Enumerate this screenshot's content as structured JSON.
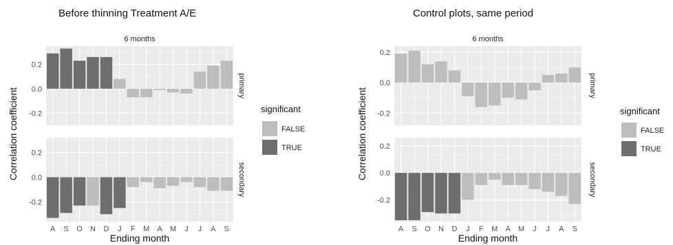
{
  "chart_data": [
    {
      "type": "bar",
      "title": "Before thinning Treatment A/E",
      "facet_label": "6 months",
      "xlabel": "Ending month",
      "ylabel": "Correlation coefficient",
      "categories": [
        "A",
        "S",
        "O",
        "N",
        "D",
        "J",
        "F",
        "M",
        "A",
        "M",
        "J",
        "J",
        "A",
        "S"
      ],
      "panels": [
        {
          "name": "primary",
          "values": [
            0.29,
            0.33,
            0.23,
            0.26,
            0.26,
            0.08,
            -0.07,
            -0.07,
            -0.01,
            -0.03,
            -0.04,
            0.14,
            0.19,
            0.23
          ],
          "significant": [
            true,
            true,
            true,
            true,
            true,
            false,
            false,
            false,
            false,
            false,
            false,
            false,
            false,
            false
          ],
          "ylim": [
            -0.3,
            0.35
          ],
          "yticks": [
            -0.2,
            0.0,
            0.2
          ],
          "ytick_labels": [
            "-0.2",
            "0.0",
            "0.2"
          ]
        },
        {
          "name": "secondary",
          "values": [
            -0.33,
            -0.29,
            -0.23,
            -0.23,
            -0.3,
            -0.25,
            -0.08,
            -0.04,
            -0.09,
            -0.07,
            -0.04,
            -0.08,
            -0.11,
            -0.11
          ],
          "significant": [
            true,
            true,
            true,
            false,
            true,
            true,
            false,
            false,
            false,
            false,
            false,
            false,
            false,
            false
          ],
          "ylim": [
            -0.36,
            0.32
          ],
          "yticks": [
            -0.2,
            0.0,
            0.2
          ],
          "ytick_labels": [
            "-0.2",
            "0.0",
            "0.2"
          ]
        }
      ],
      "legend": {
        "title": "significant",
        "entries": [
          "FALSE",
          "TRUE"
        ],
        "position": "right"
      }
    },
    {
      "type": "bar",
      "title": "Control plots, same period",
      "facet_label": "6 months",
      "xlabel": "Ending month",
      "ylabel": "Correlation coefficient",
      "categories": [
        "A",
        "S",
        "O",
        "N",
        "D",
        "J",
        "F",
        "M",
        "A",
        "M",
        "J",
        "J",
        "A",
        "S"
      ],
      "panels": [
        {
          "name": "primary",
          "values": [
            0.19,
            0.21,
            0.12,
            0.14,
            0.08,
            -0.09,
            -0.16,
            -0.15,
            -0.1,
            -0.11,
            -0.05,
            0.05,
            0.06,
            0.1
          ],
          "significant": [
            false,
            false,
            false,
            false,
            false,
            false,
            false,
            false,
            false,
            false,
            false,
            false,
            false,
            false
          ],
          "ylim": [
            -0.28,
            0.24
          ],
          "yticks": [
            -0.2,
            0.0,
            0.2
          ],
          "ytick_labels": [
            "-0.2",
            "0.0",
            "0.2"
          ]
        },
        {
          "name": "secondary",
          "values": [
            -0.35,
            -0.35,
            -0.29,
            -0.3,
            -0.3,
            -0.2,
            -0.09,
            -0.05,
            -0.09,
            -0.09,
            -0.12,
            -0.14,
            -0.17,
            -0.23
          ],
          "significant": [
            true,
            true,
            true,
            true,
            true,
            false,
            false,
            false,
            false,
            false,
            false,
            false,
            false,
            false
          ],
          "ylim": [
            -0.36,
            0.26
          ],
          "yticks": [
            -0.2,
            0.0,
            0.2
          ],
          "ytick_labels": [
            "-0.2",
            "0.0",
            "0.2"
          ]
        }
      ],
      "legend": {
        "title": "significant",
        "entries": [
          "FALSE",
          "TRUE"
        ],
        "position": "right"
      }
    }
  ],
  "colors": {
    "false_fill": "#bdbdbd",
    "true_fill": "#6e6e6e",
    "panel_bg": "#ebebeb",
    "grid_major": "#ffffff"
  }
}
